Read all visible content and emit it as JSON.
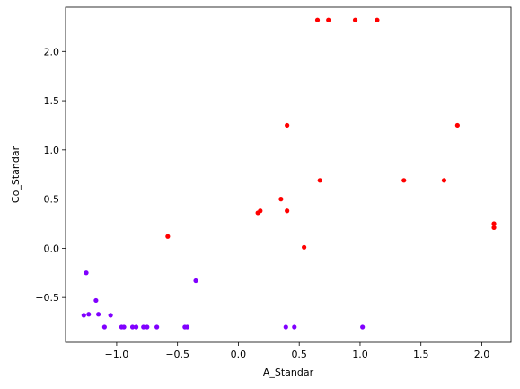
{
  "chart_data": {
    "type": "scatter",
    "title": "",
    "xlabel": "A_Standar",
    "ylabel": "Co_Standar",
    "xlim": [
      -1.42,
      2.24
    ],
    "ylim": [
      -0.955,
      2.45
    ],
    "xticks": [
      -1.0,
      -0.5,
      0.0,
      0.5,
      1.0,
      1.5,
      2.0
    ],
    "xtick_labels": [
      "−1.0",
      "−0.5",
      "0.0",
      "0.5",
      "1.0",
      "1.5",
      "2.0"
    ],
    "yticks": [
      -0.5,
      0.0,
      0.5,
      1.0,
      1.5,
      2.0
    ],
    "ytick_labels": [
      "−0.5",
      "0.0",
      "0.5",
      "1.0",
      "1.5",
      "2.0"
    ],
    "grid": false,
    "legend": "none",
    "colors": {
      "cluster_purple": "#8000ff",
      "cluster_red": "#ff0000"
    },
    "series": [
      {
        "color": "#8000ff",
        "points": [
          [
            -1.25,
            -0.25
          ],
          [
            -1.27,
            -0.68
          ],
          [
            -1.23,
            -0.67
          ],
          [
            -1.17,
            -0.53
          ],
          [
            -1.15,
            -0.67
          ],
          [
            -1.1,
            -0.8
          ],
          [
            -1.05,
            -0.68
          ],
          [
            -0.96,
            -0.8
          ],
          [
            -0.94,
            -0.8
          ],
          [
            -0.87,
            -0.8
          ],
          [
            -0.84,
            -0.8
          ],
          [
            -0.78,
            -0.8
          ],
          [
            -0.75,
            -0.8
          ],
          [
            -0.67,
            -0.8
          ],
          [
            -0.44,
            -0.8
          ],
          [
            -0.42,
            -0.8
          ],
          [
            -0.35,
            -0.33
          ],
          [
            0.39,
            -0.8
          ],
          [
            0.46,
            -0.8
          ],
          [
            1.02,
            -0.8
          ]
        ]
      },
      {
        "color": "#ff0000",
        "points": [
          [
            -0.58,
            0.12
          ],
          [
            0.16,
            0.36
          ],
          [
            0.18,
            0.38
          ],
          [
            0.35,
            0.5
          ],
          [
            0.4,
            0.38
          ],
          [
            0.4,
            1.25
          ],
          [
            0.54,
            0.01
          ],
          [
            0.67,
            0.69
          ],
          [
            0.65,
            2.32
          ],
          [
            0.74,
            2.32
          ],
          [
            0.96,
            2.32
          ],
          [
            1.14,
            2.32
          ],
          [
            1.36,
            0.69
          ],
          [
            1.69,
            0.69
          ],
          [
            1.8,
            1.25
          ],
          [
            2.1,
            0.25
          ],
          [
            2.1,
            0.21
          ]
        ]
      }
    ]
  }
}
